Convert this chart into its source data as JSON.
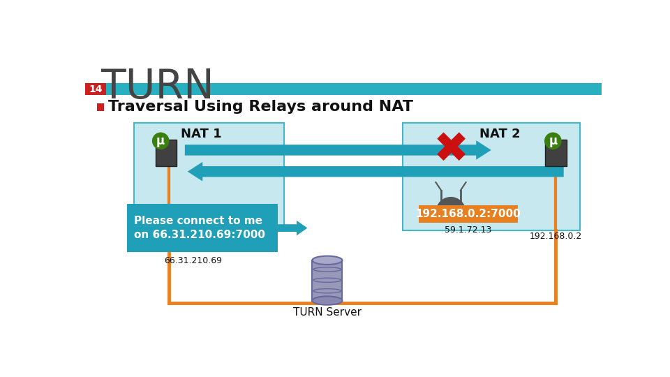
{
  "title": "TURN",
  "slide_number": "14",
  "bullet_text": "Traversal Using Relays around NAT",
  "nat1_label": "NAT 1",
  "nat2_label": "NAT 2",
  "ip_nat1": "66.31.210.69",
  "ip_nat2": "192.168.0.2",
  "ip_turn2": "59.1.72.13",
  "please_connect_text": "Please connect to me\non 66.31.210.69:7000",
  "orange_box_text": "192.168.0.2:7000",
  "turn_server_label": "TURN Server",
  "nat_fill": "#c8e8f0",
  "nat_edge": "#40b8c8",
  "arrow_color": "#20a0b8",
  "orange_color": "#e88020",
  "red_x_color": "#cc1010",
  "teal_bar": "#28b0c0",
  "red_bar": "#cc2020",
  "white": "#ffffff",
  "bg_color": "#ffffff",
  "title_color": "#444444",
  "black": "#111111"
}
